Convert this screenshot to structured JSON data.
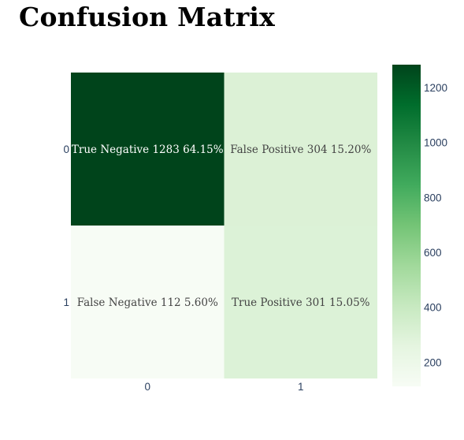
{
  "title": "Confusion Matrix",
  "chart_data": {
    "type": "heatmap",
    "title": "Confusion Matrix",
    "x_categories": [
      "0",
      "1"
    ],
    "y_categories": [
      "0",
      "1"
    ],
    "values": [
      [
        1283,
        304
      ],
      [
        112,
        301
      ]
    ],
    "cell_labels": [
      [
        "True Negative 1283 64.15%",
        "False Positive 304 15.20%"
      ],
      [
        "False Negative 112 5.60%",
        "True Positive 301 15.05%"
      ]
    ],
    "colorscale": "Greens",
    "color_range": [
      112,
      1283
    ],
    "colorbar_ticks": [
      200,
      400,
      600,
      800,
      1000,
      1200
    ],
    "xlabel": "",
    "ylabel": ""
  },
  "colors": {
    "text_light": "#ffffff",
    "text_dark": "#444444",
    "tick": "#2a3f5f"
  }
}
